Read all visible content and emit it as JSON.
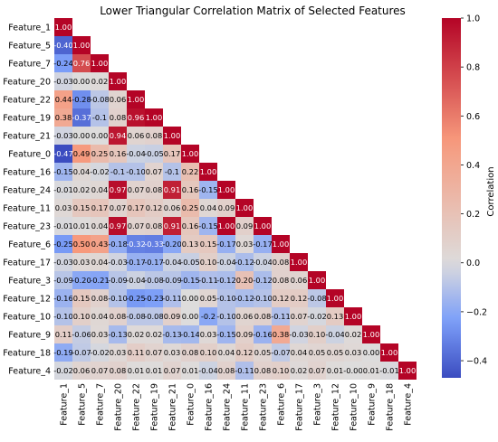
{
  "chart_data": {
    "type": "heatmap",
    "title": "Lower Triangular Correlation Matrix of Selected Features",
    "features": [
      "Feature_1",
      "Feature_5",
      "Feature_7",
      "Feature_20",
      "Feature_22",
      "Feature_19",
      "Feature_21",
      "Feature_0",
      "Feature_16",
      "Feature_24",
      "Feature_11",
      "Feature_23",
      "Feature_6",
      "Feature_17",
      "Feature_3",
      "Feature_12",
      "Feature_10",
      "Feature_9",
      "Feature_18",
      "Feature_4"
    ],
    "cells": [
      [
        "1.00"
      ],
      [
        "-0.40",
        "1.00"
      ],
      [
        "-0.24",
        "0.76",
        "1.00"
      ],
      [
        "-0.03",
        "0.00",
        "0.02",
        "1.00"
      ],
      [
        "0.44",
        "-0.28",
        "-0.08",
        "0.06",
        "1.00"
      ],
      [
        "0.38",
        "-0.37",
        "-0.1",
        "0.08",
        "0.96",
        "1.00"
      ],
      [
        "-0.03",
        "0.00",
        "0.00",
        "0.94",
        "0.06",
        "0.08",
        "1.00"
      ],
      [
        "-0.47",
        "0.49",
        "0.25",
        "0.16",
        "-0.04",
        "-0.05",
        "0.17",
        "1.00"
      ],
      [
        "-0.15",
        "0.04",
        "-0.02",
        "-0.1",
        "-0.10",
        "0.07",
        "-0.1",
        "0.22",
        "1.00"
      ],
      [
        "-0.01",
        "0.02",
        "0.04",
        "0.97",
        "0.07",
        "0.08",
        "0.91",
        "0.16",
        "-0.15",
        "1.00"
      ],
      [
        "0.03",
        "0.15",
        "0.17",
        "0.07",
        "0.17",
        "0.12",
        "0.06",
        "0.25",
        "0.04",
        "0.09",
        "1.00"
      ],
      [
        "-0.01",
        "0.01",
        "0.04",
        "0.97",
        "0.07",
        "0.08",
        "0.91",
        "0.16",
        "-0.15",
        "1.00",
        "0.09",
        "1.00"
      ],
      [
        "-0.25",
        "0.50",
        "0.43",
        "-0.18",
        "-0.32",
        "-0.33",
        "-0.20",
        "0.13",
        "0.15",
        "-0.17",
        "0.03",
        "-0.17",
        "1.00"
      ],
      [
        "-0.03",
        "0.03",
        "0.04",
        "-0.03",
        "-0.17",
        "-0.17",
        "-0.04",
        "-0.05",
        "0.10",
        "-0.04",
        "-0.12",
        "-0.04",
        "0.08",
        "1.00"
      ],
      [
        "-0.09",
        "-0.20",
        "-0.21",
        "-0.09",
        "-0.04",
        "-0.08",
        "-0.09",
        "-0.15",
        "-0.11",
        "-0.12",
        "0.20",
        "-0.12",
        "0.08",
        "0.06",
        "1.00"
      ],
      [
        "-0.16",
        "0.15",
        "0.08",
        "-0.10",
        "-0.25",
        "-0.23",
        "-0.11",
        "0.00",
        "0.05",
        "-0.10",
        "-0.12",
        "-0.10",
        "0.12",
        "0.12",
        "-0.08",
        "1.00"
      ],
      [
        "-0.10",
        "0.10",
        "0.04",
        "0.08",
        "-0.08",
        "-0.08",
        "0.09",
        "0.00",
        "-0.2",
        "-0.10",
        "0.06",
        "0.08",
        "-0.11",
        "0.07",
        "-0.02",
        "0.13",
        "1.00"
      ],
      [
        "0.11",
        "-0.06",
        "0.03",
        "-0.13",
        "0.02",
        "0.02",
        "-0.13",
        "-0.14",
        "0.03",
        "-0.15",
        "0.09",
        "-0.16",
        "0.38",
        "-0.03",
        "0.10",
        "-0.04",
        "0.02",
        "1.00"
      ],
      [
        "-0.19",
        "-0.07",
        "-0.02",
        "0.03",
        "0.11",
        "0.07",
        "0.03",
        "0.08",
        "0.10",
        "0.04",
        "0.12",
        "0.05",
        "-0.07",
        "0.04",
        "0.05",
        "0.05",
        "0.03",
        "0.00",
        "1.00"
      ],
      [
        "-0.02",
        "0.06",
        "0.07",
        "0.08",
        "0.01",
        "0.01",
        "0.07",
        "0.01",
        "-0.04",
        "0.08",
        "-0.11",
        "0.08",
        "0.10",
        "0.02",
        "0.07",
        "0.01",
        "-0.00",
        "0.01",
        "-0.01",
        "1.00"
      ]
    ],
    "colorbar": {
      "label": "Correlation",
      "vmin": -0.47,
      "vmax": 1.0,
      "ticks": [
        "1.0",
        "0.8",
        "0.6",
        "0.4",
        "0.2",
        "0.0",
        "−0.2",
        "−0.4"
      ],
      "tick_values": [
        1.0,
        0.8,
        0.6,
        0.4,
        0.2,
        0.0,
        -0.2,
        -0.4
      ],
      "colormap": "coolwarm"
    },
    "colors": {
      "low": "#3b4cc0",
      "mid": "#dddcdc",
      "high": "#b40426"
    }
  }
}
